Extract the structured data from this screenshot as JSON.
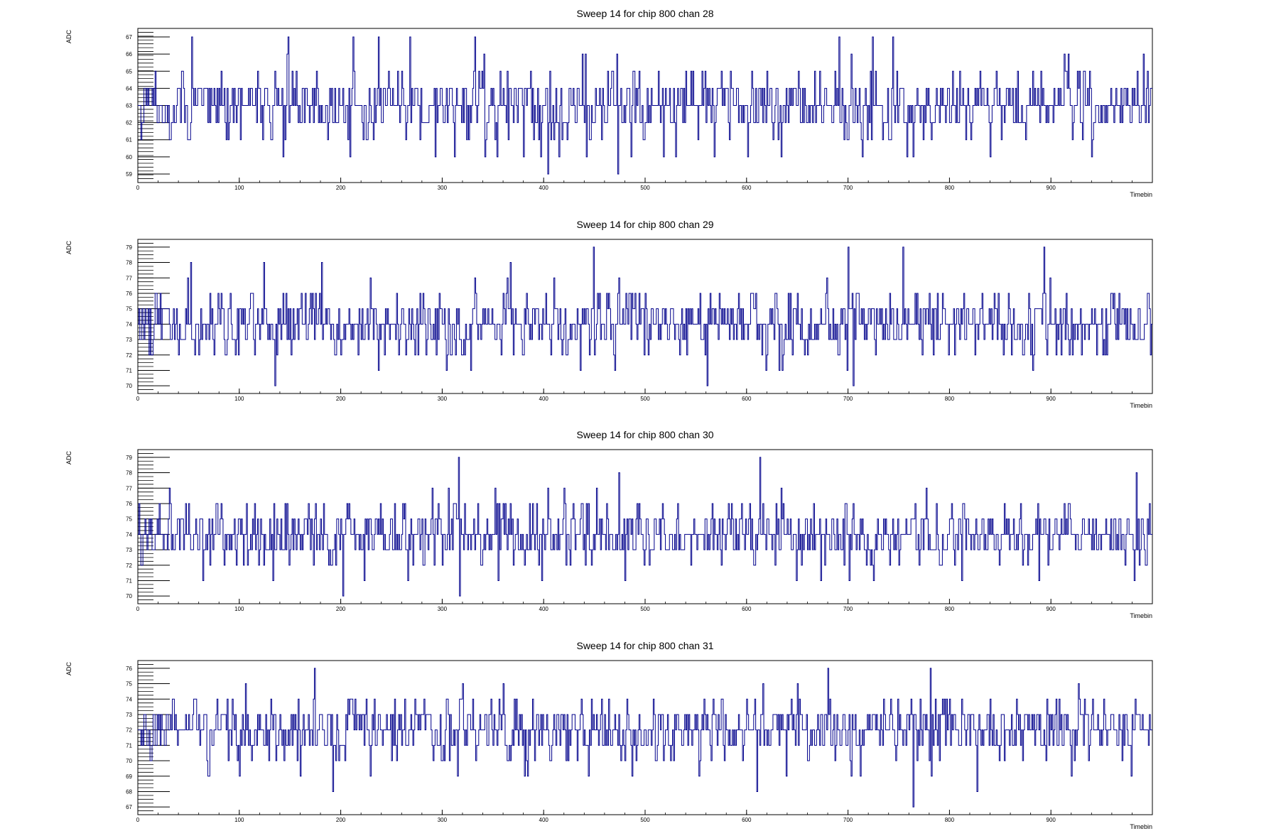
{
  "chart_data": [
    {
      "type": "line",
      "title": "Sweep 14 for chip 800 chan 28",
      "xlabel": "Timebin",
      "ylabel": "ADC",
      "xlim": [
        0,
        1000
      ],
      "ylim": [
        58.5,
        67.5
      ],
      "xticks": [
        0,
        100,
        200,
        300,
        400,
        500,
        600,
        700,
        800,
        900
      ],
      "yticks": [
        59,
        60,
        61,
        62,
        63,
        64,
        65,
        66,
        67
      ],
      "series": [
        {
          "baseline": 63,
          "spread": 1.3,
          "spikes": [
            [
              53,
              67
            ],
            [
              148,
              67
            ],
            [
              212,
              67
            ],
            [
              237,
              67
            ],
            [
              268,
              67
            ],
            [
              332,
              67
            ],
            [
              404,
              59
            ],
            [
              473,
              59
            ],
            [
              691,
              67
            ],
            [
              724,
              67
            ],
            [
              744,
              67
            ],
            [
              209,
              60
            ],
            [
              293,
              60
            ],
            [
              312,
              60
            ],
            [
              380,
              60
            ],
            [
              415,
              60
            ],
            [
              442,
              60
            ],
            [
              530,
              60
            ],
            [
              568,
              60
            ],
            [
              634,
              60
            ],
            [
              714,
              60
            ],
            [
              940,
              60
            ]
          ]
        }
      ]
    },
    {
      "type": "line",
      "title": "Sweep 14 for chip 800 chan 29",
      "xlabel": "Timebin",
      "ylabel": "ADC",
      "xlim": [
        0,
        1000
      ],
      "ylim": [
        69.5,
        79.5
      ],
      "xticks": [
        0,
        100,
        200,
        300,
        400,
        500,
        600,
        700,
        800,
        900
      ],
      "yticks": [
        70,
        71,
        72,
        73,
        74,
        75,
        76,
        77,
        78,
        79
      ],
      "series": [
        {
          "baseline": 74,
          "spread": 1.4,
          "spikes": [
            [
              52,
              78
            ],
            [
              124,
              78
            ],
            [
              181,
              78
            ],
            [
              367,
              78
            ],
            [
              449,
              79
            ],
            [
              700,
              79
            ],
            [
              754,
              79
            ],
            [
              893,
              79
            ],
            [
              135,
              70
            ],
            [
              561,
              70
            ],
            [
              705,
              70
            ],
            [
              237,
              71
            ],
            [
              470,
              71
            ]
          ]
        }
      ]
    },
    {
      "type": "line",
      "title": "Sweep 14 for chip 800 chan 30",
      "xlabel": "Timebin",
      "ylabel": "ADC",
      "xlim": [
        0,
        1000
      ],
      "ylim": [
        69.5,
        79.5
      ],
      "xticks": [
        0,
        100,
        200,
        300,
        400,
        500,
        600,
        700,
        800,
        900
      ],
      "yticks": [
        70,
        71,
        72,
        73,
        74,
        75,
        76,
        77,
        78,
        79
      ],
      "series": [
        {
          "baseline": 74,
          "spread": 1.3,
          "spikes": [
            [
              316,
              79
            ],
            [
              613,
              79
            ],
            [
              474,
              78
            ],
            [
              984,
              78
            ],
            [
              202,
              70
            ],
            [
              317,
              70
            ],
            [
              64,
              71
            ],
            [
              133,
              71
            ],
            [
              355,
              71
            ],
            [
              480,
              71
            ],
            [
              649,
              71
            ]
          ]
        }
      ]
    },
    {
      "type": "line",
      "title": "Sweep 14 for chip 800 chan 31",
      "xlabel": "Timebin",
      "ylabel": "ADC",
      "xlim": [
        0,
        1000
      ],
      "ylim": [
        66.5,
        76.5
      ],
      "xticks": [
        0,
        100,
        200,
        300,
        400,
        500,
        600,
        700,
        800,
        900
      ],
      "yticks": [
        67,
        68,
        69,
        70,
        71,
        72,
        73,
        74,
        75,
        76
      ],
      "series": [
        {
          "baseline": 72,
          "spread": 1.3,
          "spikes": [
            [
              174,
              76
            ],
            [
              680,
              76
            ],
            [
              781,
              76
            ],
            [
              764,
              67
            ],
            [
              192,
              68
            ],
            [
              610,
              68
            ],
            [
              827,
              68
            ],
            [
              100,
              69
            ],
            [
              160,
              69
            ],
            [
              229,
              69
            ],
            [
              384,
              69
            ],
            [
              444,
              69
            ],
            [
              487,
              69
            ],
            [
              553,
              69
            ],
            [
              639,
              69
            ],
            [
              920,
              69
            ]
          ]
        }
      ]
    }
  ],
  "style": {
    "line_color": "#00008b",
    "axis_color": "#000000",
    "background": "#ffffff"
  }
}
